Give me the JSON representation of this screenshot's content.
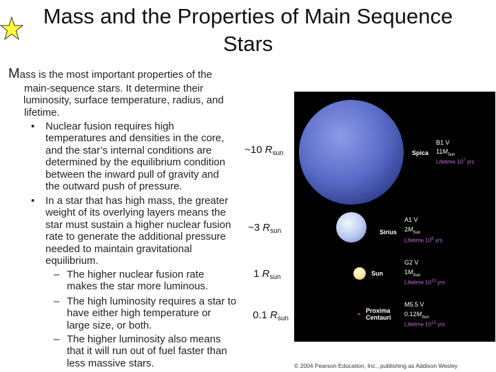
{
  "title": {
    "line1": "Mass and the Properties of Main Sequence",
    "line2": "Stars"
  },
  "intro": {
    "first_letter": "M",
    "line1_rest": "ass is the most important properties of the",
    "lines": [
      "main-sequence stars. It determine their",
      "luminosity, surface temperature, radius, and",
      "lifetime."
    ]
  },
  "bullets": [
    {
      "symbol": "•",
      "lines": [
        "Nuclear fusion requires high",
        "temperatures and densities in the core,",
        "and the star’s internal conditions are",
        "determined by the equilibrium condition",
        "between the inward pull of gravity and",
        "the outward push of pressure."
      ]
    },
    {
      "symbol": "•",
      "lines": [
        "In a star that has high mass, the greater",
        "weight of its overlying layers means the",
        "star must sustain a higher nuclear fusion",
        "rate to generate the additional pressure",
        "needed to maintain gravitational",
        "equilibrium."
      ]
    }
  ],
  "sub_bullets": [
    {
      "symbol": "–",
      "lines": [
        "The higher nuclear fusion rate",
        "makes the star more luminous."
      ]
    },
    {
      "symbol": "–",
      "lines": [
        "The high luminosity requires a star to",
        "have either high temperature or",
        "large size, or both."
      ]
    },
    {
      "symbol": "–",
      "lines": [
        "The higher luminosity also means",
        "that it will run out of fuel faster than",
        "less massive stars."
      ]
    }
  ],
  "scale_labels": [
    {
      "prefix": "~10 ",
      "r": "R",
      "sub": "sun"
    },
    {
      "prefix": "~3 ",
      "r": "R",
      "sub": "sun"
    },
    {
      "prefix": "1 ",
      "r": "R",
      "sub": "sun"
    },
    {
      "prefix": "0.1 ",
      "r": "R",
      "sub": "sun"
    }
  ],
  "figure": {
    "stars": [
      {
        "name": "Spica",
        "type": "B1 V",
        "mass_value": "11",
        "mass_unit": "M",
        "mass_sub": "Sun",
        "life_prefix": "Lifetime 10",
        "life_exp": "7",
        "life_suffix": " yrs",
        "color": "#5a6cc8"
      },
      {
        "name": "Sirius",
        "type": "A1 V",
        "mass_value": "2",
        "mass_unit": "M",
        "mass_sub": "Sun",
        "life_prefix": "Lifetime 10",
        "life_exp": "9",
        "life_suffix": " yrs",
        "color": "#b9c9ee"
      },
      {
        "name": "Sun",
        "type": "G2 V",
        "mass_value": "1",
        "mass_unit": "M",
        "mass_sub": "Sun",
        "life_prefix": "Lifetime 10",
        "life_exp": "10",
        "life_suffix": " yrs",
        "color": "#f3e49a"
      },
      {
        "name_line1": "Proxima",
        "name_line2": "Centauri",
        "type": "M5.5 V",
        "mass_value": "0.12",
        "mass_unit": "M",
        "mass_sub": "Sun",
        "life_prefix": "Lifetime 10",
        "life_exp": "13",
        "life_suffix": " yrs",
        "color": "#d0443a"
      }
    ],
    "copyright": "© 2004 Pearson Education, Inc., publishing as Addison Wesley"
  }
}
